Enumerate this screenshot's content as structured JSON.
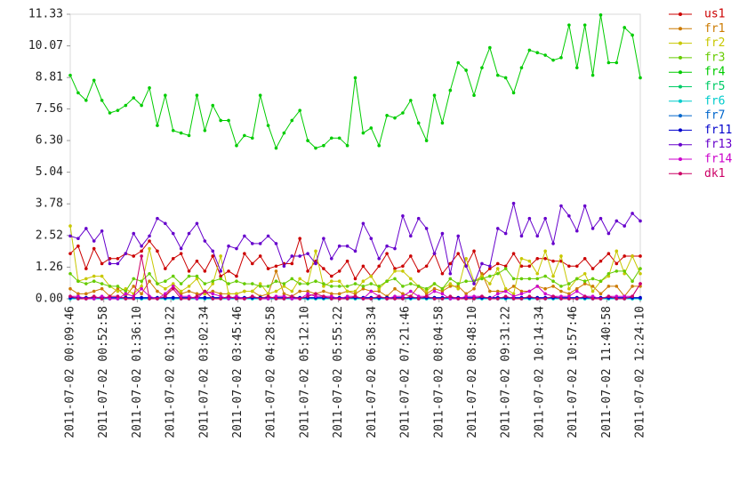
{
  "chart_data": {
    "type": "line",
    "x": [
      "2011-07-02 00:09:46",
      "2011-07-02 00:19:58",
      "2011-07-02 00:30:10",
      "2011-07-02 00:40:22",
      "2011-07-02 00:50:34",
      "2011-07-02 01:00:46",
      "2011-07-02 01:10:58",
      "2011-07-02 01:21:10",
      "2011-07-02 01:31:22",
      "2011-07-02 01:41:34",
      "2011-07-02 01:51:46",
      "2011-07-02 02:01:58",
      "2011-07-02 02:12:10",
      "2011-07-02 02:22:22",
      "2011-07-02 02:32:34",
      "2011-07-02 02:42:46",
      "2011-07-02 02:52:58",
      "2011-07-02 03:03:10",
      "2011-07-02 03:13:22",
      "2011-07-02 03:23:34",
      "2011-07-02 03:33:46",
      "2011-07-02 03:43:58",
      "2011-07-02 03:54:10",
      "2011-07-02 04:04:22",
      "2011-07-02 04:14:34",
      "2011-07-02 04:24:46",
      "2011-07-02 04:34:58",
      "2011-07-02 04:45:10",
      "2011-07-02 04:55:22",
      "2011-07-02 05:05:34",
      "2011-07-02 05:15:46",
      "2011-07-02 05:25:58",
      "2011-07-02 05:36:10",
      "2011-07-02 05:46:22",
      "2011-07-02 05:56:34",
      "2011-07-02 06:06:46",
      "2011-07-02 06:16:58",
      "2011-07-02 06:27:10",
      "2011-07-02 06:37:22",
      "2011-07-02 06:47:34",
      "2011-07-02 06:57:46",
      "2011-07-02 07:07:58",
      "2011-07-02 07:18:10",
      "2011-07-02 07:28:22",
      "2011-07-02 07:38:34",
      "2011-07-02 07:48:46",
      "2011-07-02 07:58:58",
      "2011-07-02 08:09:10",
      "2011-07-02 08:19:22",
      "2011-07-02 08:29:34",
      "2011-07-02 08:39:46",
      "2011-07-02 08:49:58",
      "2011-07-02 09:00:10",
      "2011-07-02 09:10:22",
      "2011-07-02 09:20:34",
      "2011-07-02 09:30:46",
      "2011-07-02 09:40:58",
      "2011-07-02 09:51:10",
      "2011-07-02 10:01:22",
      "2011-07-02 10:11:34",
      "2011-07-02 10:21:46",
      "2011-07-02 10:31:58",
      "2011-07-02 10:42:10",
      "2011-07-02 10:52:22",
      "2011-07-02 11:02:34",
      "2011-07-02 11:12:46",
      "2011-07-02 11:22:58",
      "2011-07-02 11:33:10",
      "2011-07-02 11:43:22",
      "2011-07-02 11:53:34",
      "2011-07-02 12:03:46",
      "2011-07-02 12:13:58",
      "2011-07-02 12:24:10"
    ],
    "xlim": [
      "2011-07-02 00:09:46",
      "2011-07-02 12:24:10"
    ],
    "xticks": [
      "2011-07-02 00:09:46",
      "2011-07-02 00:52:58",
      "2011-07-02 01:36:10",
      "2011-07-02 02:19:22",
      "2011-07-02 03:02:34",
      "2011-07-02 03:45:46",
      "2011-07-02 04:28:58",
      "2011-07-02 05:12:10",
      "2011-07-02 05:55:22",
      "2011-07-02 06:38:34",
      "2011-07-02 07:21:46",
      "2011-07-02 08:04:58",
      "2011-07-02 08:48:10",
      "2011-07-02 09:31:22",
      "2011-07-02 10:14:34",
      "2011-07-02 10:57:46",
      "2011-07-02 11:40:58",
      "2011-07-02 12:24:10"
    ],
    "ylim": [
      0,
      11.33
    ],
    "yticks": [
      {
        "value": 0,
        "label": "0.00"
      },
      1.26,
      2.52,
      3.78,
      5.04,
      {
        "value": 6.3,
        "label": "6.30"
      },
      7.56,
      8.81,
      10.07,
      11.33
    ],
    "legend": "right",
    "series": [
      {
        "name": "us1",
        "color": "#cc0000",
        "values": [
          1.8,
          2.1,
          1.2,
          2.0,
          1.4,
          1.6,
          1.6,
          1.8,
          1.7,
          1.9,
          2.3,
          1.9,
          1.2,
          1.6,
          1.8,
          1.1,
          1.5,
          1.1,
          1.7,
          0.9,
          1.1,
          0.9,
          1.8,
          1.4,
          1.7,
          1.2,
          1.3,
          1.4,
          1.4,
          2.4,
          1.1,
          1.5,
          1.2,
          0.9,
          1.1,
          1.5,
          0.8,
          1.3,
          0.9,
          1.3,
          1.8,
          1.2,
          1.3,
          1.7,
          1.1,
          1.3,
          1.8,
          1.0,
          1.4,
          1.8,
          1.3,
          1.9,
          0.9,
          1.2,
          1.4,
          1.3,
          1.8,
          1.3,
          1.3,
          1.6,
          1.6,
          1.5,
          1.5,
          1.3,
          1.3,
          1.6,
          1.2,
          1.5,
          1.8,
          1.4,
          1.7,
          1.7,
          1.7
        ]
      },
      {
        "name": "fr1",
        "color": "#cc7a00",
        "values": [
          0.4,
          0.2,
          0.2,
          0.3,
          0.4,
          0.1,
          0.4,
          0.1,
          0.5,
          0.2,
          0.7,
          0.3,
          0.1,
          0.5,
          0.2,
          0.3,
          0.2,
          0.2,
          0.3,
          0.2,
          0.2,
          0.2,
          0.3,
          0.3,
          0.1,
          0.2,
          1.1,
          0.2,
          0.1,
          0.3,
          0.3,
          0.2,
          0.3,
          0.2,
          0.2,
          0.3,
          0.2,
          0.4,
          0.3,
          0.3,
          0.1,
          0.4,
          0.2,
          0.1,
          0.5,
          0.2,
          0.4,
          0.3,
          0.5,
          0.5,
          0.2,
          0.4,
          1.0,
          0.3,
          0.3,
          0.3,
          0.5,
          0.3,
          0.3,
          0.5,
          0.4,
          0.5,
          0.3,
          0.2,
          0.4,
          0.6,
          0.5,
          0.2,
          0.5,
          0.5,
          0.1,
          0.5,
          0.5
        ]
      },
      {
        "name": "fr2",
        "color": "#c8c800",
        "values": [
          2.9,
          0.7,
          0.8,
          0.9,
          0.9,
          0.5,
          0.3,
          0.4,
          0.2,
          0.5,
          2.0,
          0.6,
          0.4,
          0.6,
          0.3,
          0.5,
          0.8,
          0.2,
          0.6,
          1.7,
          0.2,
          0.2,
          0.3,
          0.3,
          0.6,
          0.2,
          0.3,
          0.5,
          0.3,
          0.8,
          0.6,
          1.9,
          0.5,
          0.7,
          0.7,
          0.3,
          0.3,
          0.7,
          0.9,
          0.4,
          0.7,
          1.1,
          1.1,
          0.8,
          0.5,
          0.3,
          0.6,
          0.4,
          0.6,
          0.4,
          1.6,
          0.7,
          0.9,
          0.6,
          1.2,
          0.4,
          0.2,
          1.6,
          1.5,
          1.0,
          1.9,
          0.9,
          1.7,
          0.4,
          0.8,
          1.0,
          0.3,
          0.7,
          0.9,
          1.9,
          1.0,
          1.7,
          1.0
        ]
      },
      {
        "name": "fr3",
        "color": "#66cc00",
        "values": [
          1.0,
          0.7,
          0.6,
          0.7,
          0.6,
          0.5,
          0.5,
          0.3,
          0.8,
          0.7,
          1.0,
          0.6,
          0.7,
          0.9,
          0.6,
          0.9,
          0.9,
          0.6,
          0.7,
          0.8,
          0.6,
          0.7,
          0.6,
          0.6,
          0.5,
          0.5,
          0.7,
          0.6,
          0.8,
          0.6,
          0.6,
          0.7,
          0.6,
          0.5,
          0.5,
          0.5,
          0.6,
          0.5,
          0.6,
          0.5,
          0.7,
          0.8,
          0.5,
          0.6,
          0.5,
          0.4,
          0.6,
          0.4,
          0.8,
          0.6,
          0.7,
          0.7,
          0.8,
          0.9,
          1.0,
          1.2,
          0.8,
          0.8,
          0.8,
          0.8,
          0.9,
          0.7,
          0.5,
          0.6,
          0.8,
          0.7,
          0.8,
          0.7,
          1.0,
          1.1,
          1.1,
          0.7,
          1.2
        ]
      },
      {
        "name": "fr4",
        "color": "#00cc00",
        "values": [
          8.9,
          8.2,
          7.9,
          8.7,
          7.9,
          7.4,
          7.5,
          7.7,
          8.0,
          7.7,
          8.4,
          6.9,
          8.1,
          6.7,
          6.6,
          6.5,
          8.1,
          6.7,
          7.7,
          7.1,
          7.1,
          6.1,
          6.5,
          6.4,
          8.1,
          6.9,
          6.0,
          6.6,
          7.1,
          7.5,
          6.3,
          6.0,
          6.1,
          6.4,
          6.4,
          6.1,
          8.8,
          6.6,
          6.8,
          6.1,
          7.3,
          7.2,
          7.4,
          7.9,
          7.0,
          6.3,
          8.1,
          7.0,
          8.3,
          9.4,
          9.1,
          8.1,
          9.2,
          10.0,
          8.9,
          8.8,
          8.2,
          9.2,
          9.9,
          9.8,
          9.7,
          9.5,
          9.6,
          10.9,
          9.2,
          10.9,
          8.9,
          11.3,
          9.4,
          9.4,
          10.8,
          10.5,
          8.8
        ]
      },
      {
        "name": "fr5",
        "color": "#00cc66",
        "values": [
          0,
          0,
          0,
          0,
          0,
          0,
          0,
          0,
          0,
          0,
          0,
          0,
          0,
          0,
          0,
          0,
          0,
          0,
          0,
          0,
          0,
          0,
          0,
          0,
          0,
          0,
          0,
          0,
          0,
          0,
          0,
          0,
          0,
          0,
          0,
          0,
          0,
          0,
          0,
          0,
          0,
          0,
          0,
          0,
          0,
          0,
          0,
          0,
          0,
          0,
          0,
          0,
          0,
          0,
          0,
          0,
          0,
          0,
          0,
          0,
          0,
          0,
          0,
          0,
          0,
          0,
          0,
          0,
          0,
          0,
          0,
          0,
          0
        ]
      },
      {
        "name": "fr6",
        "color": "#00cccc",
        "values": [
          0,
          0,
          0,
          0,
          0,
          0,
          0,
          0,
          0,
          0,
          0,
          0,
          0,
          0,
          0,
          0,
          0,
          0,
          0,
          0,
          0,
          0,
          0,
          0,
          0,
          0,
          0,
          0,
          0,
          0,
          0,
          0,
          0,
          0,
          0,
          0,
          0,
          0,
          0,
          0,
          0,
          0,
          0,
          0,
          0,
          0,
          0,
          0,
          0,
          0,
          0,
          0,
          0,
          0,
          0,
          0,
          0,
          0,
          0,
          0,
          0,
          0,
          0,
          0,
          0,
          0,
          0,
          0,
          0,
          0,
          0,
          0,
          0
        ]
      },
      {
        "name": "fr7",
        "color": "#0066cc",
        "values": [
          0.02,
          0.02,
          0.02,
          0.02,
          0.02,
          0.02,
          0.02,
          0.02,
          0.02,
          0.02,
          0.02,
          0.02,
          0.02,
          0.02,
          0.02,
          0.02,
          0.02,
          0.02,
          0.02,
          0.02,
          0.02,
          0.02,
          0.02,
          0.02,
          0.02,
          0.02,
          0.02,
          0.02,
          0.02,
          0.02,
          0.02,
          0.02,
          0.02,
          0.02,
          0.02,
          0.02,
          0.02,
          0.02,
          0.02,
          0.02,
          0.02,
          0.02,
          0.02,
          0.02,
          0.02,
          0.02,
          0.02,
          0.02,
          0.02,
          0.02,
          0.02,
          0.02,
          0.02,
          0.02,
          0.02,
          0.02,
          0.02,
          0.02,
          0.02,
          0.02,
          0.02,
          0.02,
          0.02,
          0.02,
          0.02,
          0.02,
          0.02,
          0.02,
          0.02,
          0.02,
          0.02,
          0.02,
          0.02
        ]
      },
      {
        "name": "fr11",
        "color": "#0000cc",
        "values": [
          0.05,
          0.05,
          0.05,
          0.05,
          0.05,
          0.05,
          0.05,
          0.05,
          0.05,
          0.05,
          0.05,
          0.05,
          0.05,
          0.05,
          0.05,
          0.05,
          0.05,
          0.05,
          0.05,
          0.05,
          0.05,
          0.05,
          0.05,
          0.05,
          0.05,
          0.05,
          0.05,
          0.05,
          0.05,
          0.05,
          0.05,
          0.05,
          0.05,
          0.05,
          0.05,
          0.05,
          0.05,
          0.05,
          0.05,
          0.05,
          0.05,
          0.05,
          0.05,
          0.05,
          0.05,
          0.05,
          0.05,
          0.05,
          0.05,
          0.05,
          0.05,
          0.05,
          0.05,
          0.05,
          0.05,
          0.05,
          0.05,
          0.05,
          0.05,
          0.05,
          0.05,
          0.05,
          0.05,
          0.05,
          0.05,
          0.05,
          0.05,
          0.05,
          0.05,
          0.05,
          0.05,
          0.05,
          0.05
        ]
      },
      {
        "name": "fr13",
        "color": "#6600cc",
        "values": [
          2.5,
          2.4,
          2.8,
          2.3,
          2.7,
          1.4,
          1.4,
          1.8,
          2.6,
          2.1,
          2.5,
          3.2,
          3.0,
          2.6,
          2.0,
          2.6,
          3.0,
          2.3,
          1.9,
          1.1,
          2.1,
          2.0,
          2.5,
          2.2,
          2.2,
          2.5,
          2.2,
          1.3,
          1.7,
          1.7,
          1.8,
          1.4,
          2.4,
          1.6,
          2.1,
          2.1,
          1.9,
          3.0,
          2.4,
          1.6,
          2.1,
          2.0,
          3.3,
          2.5,
          3.2,
          2.8,
          1.8,
          2.6,
          1.0,
          2.5,
          1.3,
          0.6,
          1.4,
          1.3,
          2.8,
          2.6,
          3.8,
          2.5,
          3.2,
          2.5,
          3.2,
          2.2,
          3.7,
          3.3,
          2.7,
          3.7,
          2.8,
          3.2,
          2.6,
          3.1,
          2.9,
          3.4,
          3.1
        ]
      },
      {
        "name": "fr14",
        "color": "#cc00cc",
        "values": [
          0.1,
          0.1,
          0.0,
          0.0,
          0.1,
          0.0,
          0.0,
          0.2,
          0.1,
          0.4,
          0.1,
          0.0,
          0.2,
          0.5,
          0.1,
          0.1,
          0.0,
          0.3,
          0.2,
          0.1,
          0.0,
          0.1,
          0.0,
          0.1,
          0.0,
          0.0,
          0.1,
          0.1,
          0.0,
          0.0,
          0.2,
          0.1,
          0.1,
          0.1,
          0.0,
          0.1,
          0.1,
          0.0,
          0.3,
          0.1,
          0.0,
          0.1,
          0.1,
          0.3,
          0.1,
          0.1,
          0.3,
          0.2,
          0.0,
          0.0,
          0.1,
          0.1,
          0.1,
          0.0,
          0.2,
          0.3,
          0.1,
          0.2,
          0.3,
          0.5,
          0.2,
          0.1,
          0.1,
          0.1,
          0.3,
          0.1,
          0.1,
          0.0,
          0.1,
          0.1,
          0.1,
          0.1,
          0.6
        ]
      },
      {
        "name": "dk1",
        "color": "#cc0066",
        "values": [
          0.1,
          0.0,
          0.0,
          0.1,
          0.0,
          0.1,
          0.1,
          0.0,
          0.0,
          1.7,
          0.0,
          0.0,
          0.1,
          0.4,
          0.0,
          0.0,
          0.1,
          0.3,
          0.0,
          0.0,
          0.1,
          0.0,
          0.0,
          0.1,
          0.0,
          0.1,
          0.0,
          0.0,
          0.1,
          0.0,
          0.1,
          0.2,
          0.1,
          0.0,
          0.0,
          0.0,
          0.1,
          0.0,
          0.0,
          0.1,
          0.0,
          0.0,
          0.0,
          0.1,
          0.0,
          0.1,
          0.0,
          0.0,
          0.1,
          0.0,
          0.0,
          0.0,
          0.1,
          0.0,
          0.0,
          0.1,
          0.0,
          0.0,
          0.1,
          0.0,
          0.0,
          0.1,
          0.0,
          0.0,
          0.0,
          0.1,
          0.0,
          0.0,
          0.1,
          0.0,
          0.0,
          0.1,
          0.6
        ]
      }
    ]
  }
}
